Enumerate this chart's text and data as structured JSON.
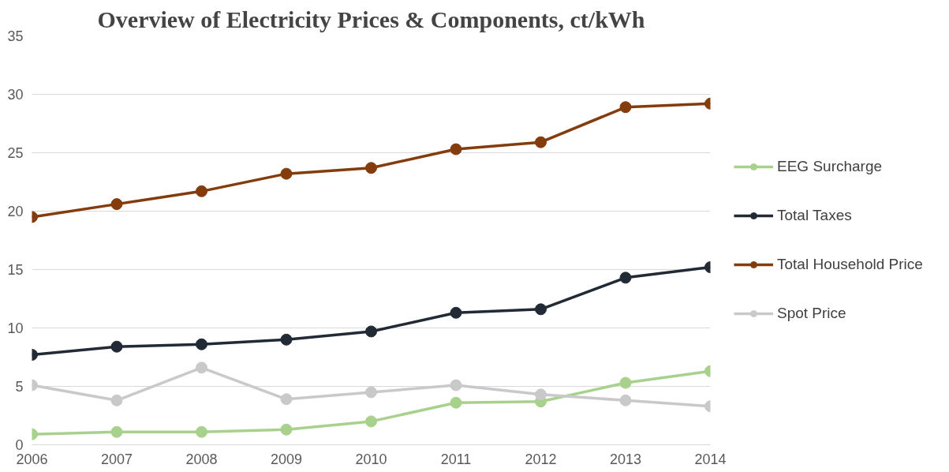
{
  "chart_data": {
    "type": "line",
    "title": "Overview of Electricity Prices & Components, ct/kWh",
    "x": [
      2006,
      2007,
      2008,
      2009,
      2010,
      2011,
      2012,
      2013,
      2014
    ],
    "xlim": [
      2006,
      2014
    ],
    "xticks": [
      2006,
      2007,
      2008,
      2009,
      2010,
      2011,
      2012,
      2013,
      2014
    ],
    "ylim": [
      0,
      35
    ],
    "yticks": [
      0,
      5,
      10,
      15,
      20,
      25,
      30,
      35
    ],
    "grid": "y",
    "legend": "right",
    "marker": "circle",
    "series": [
      {
        "name": "EEG Surcharge",
        "color": "#a9d18e",
        "values": [
          0.9,
          1.1,
          1.1,
          1.3,
          2.0,
          3.6,
          3.7,
          5.3,
          6.3
        ]
      },
      {
        "name": "Total Taxes",
        "color": "#222a35",
        "values": [
          7.7,
          8.4,
          8.6,
          9.0,
          9.7,
          11.3,
          11.6,
          14.3,
          15.2
        ]
      },
      {
        "name": "Total Household Price",
        "color": "#843c0c",
        "values": [
          19.5,
          20.6,
          21.7,
          23.2,
          23.7,
          25.3,
          25.9,
          28.9,
          29.2
        ]
      },
      {
        "name": "Spot Price",
        "color": "#c9c9c9",
        "values": [
          5.1,
          3.8,
          6.6,
          3.9,
          4.5,
          5.1,
          4.3,
          3.8,
          3.3
        ]
      }
    ]
  }
}
